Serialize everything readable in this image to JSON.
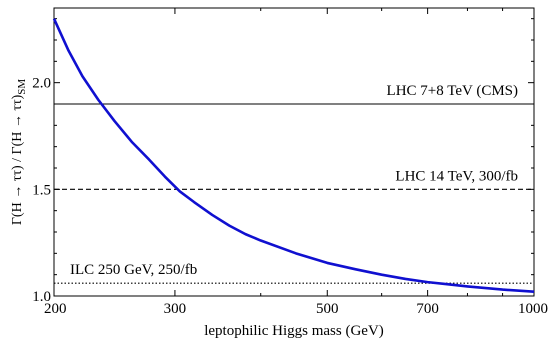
{
  "chart_data": {
    "type": "line",
    "title": "",
    "xlabel": "leptophilic Higgs mass (GeV)",
    "ylabel": "Γ(H → ττ) / Γ(H → ττ)",
    "ylabel_subscript": "SM",
    "x_scale": "log",
    "xlim": [
      200,
      1000
    ],
    "ylim": [
      1.0,
      2.35
    ],
    "x_ticks": [
      {
        "value": 200,
        "label": "200"
      },
      {
        "value": 300,
        "label": "300"
      },
      {
        "value": 500,
        "label": "500"
      },
      {
        "value": 700,
        "label": "700"
      },
      {
        "value": 1000,
        "label": "1000"
      }
    ],
    "y_ticks": [
      {
        "value": 1.0,
        "label": "1.0"
      },
      {
        "value": 1.5,
        "label": "1.5"
      },
      {
        "value": 2.0,
        "label": "2.0"
      }
    ],
    "series": [
      {
        "color": "#1010d0",
        "x": [
          200,
          210,
          220,
          232,
          245,
          260,
          275,
          290,
          305,
          320,
          340,
          360,
          380,
          400,
          450,
          500,
          550,
          600,
          650,
          700,
          750,
          800,
          900,
          1000
        ],
        "y": [
          2.3,
          2.15,
          2.03,
          1.92,
          1.82,
          1.72,
          1.64,
          1.56,
          1.49,
          1.44,
          1.38,
          1.33,
          1.29,
          1.26,
          1.2,
          1.155,
          1.125,
          1.1,
          1.08,
          1.065,
          1.055,
          1.045,
          1.03,
          1.02
        ]
      }
    ],
    "reference_lines": [
      {
        "label": "LHC 7+8 TeV (CMS)",
        "y": 1.9,
        "style": "solid",
        "color": "#000000"
      },
      {
        "label": "LHC 14 TeV, 300/fb",
        "y": 1.5,
        "style": "dashed",
        "color": "#000000"
      },
      {
        "label": "ILC 250 GeV, 250/fb",
        "y": 1.06,
        "style": "dotted",
        "color": "#000000"
      }
    ],
    "grid": false
  }
}
